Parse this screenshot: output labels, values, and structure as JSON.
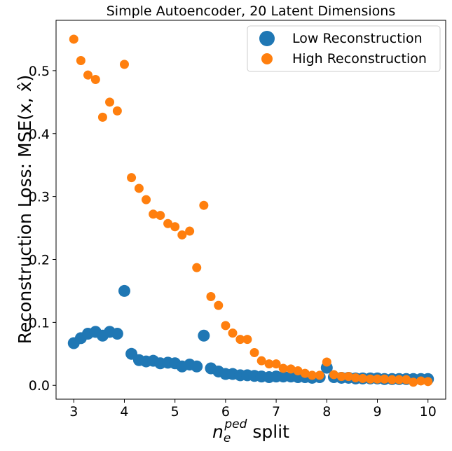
{
  "chart_data": {
    "type": "scatter",
    "title": "Simple Autoencoder, 20 Latent Dimensions",
    "xlabel_main": "n",
    "xlabel_sub": "e",
    "xlabel_sup": "ped",
    "xlabel_rest": " split",
    "ylabel": "Reconstruction Loss: MSE(x, x̂)",
    "xlim": [
      2.65,
      10.35
    ],
    "ylim": [
      -0.022,
      0.58
    ],
    "xticks": [
      "3",
      "4",
      "5",
      "6",
      "7",
      "8",
      "9",
      "10"
    ],
    "yticks": [
      "0.0",
      "0.1",
      "0.2",
      "0.3",
      "0.4",
      "0.5"
    ],
    "legend_position": "upper-right",
    "series": [
      {
        "name": "Low Reconstruction",
        "color": "#1f77b4",
        "marker_scale": "large",
        "x": [
          3.0,
          3.14,
          3.28,
          3.43,
          3.57,
          3.71,
          3.86,
          4.0,
          4.14,
          4.29,
          4.43,
          4.57,
          4.71,
          4.86,
          5.0,
          5.14,
          5.29,
          5.43,
          5.57,
          5.71,
          5.86,
          6.0,
          6.14,
          6.29,
          6.43,
          6.57,
          6.71,
          6.86,
          7.0,
          7.14,
          7.29,
          7.43,
          7.57,
          7.71,
          7.86,
          8.0,
          8.14,
          8.29,
          8.43,
          8.57,
          8.71,
          8.86,
          9.0,
          9.14,
          9.29,
          9.43,
          9.57,
          9.71,
          9.86,
          10.0
        ],
        "y": [
          0.067,
          0.075,
          0.082,
          0.085,
          0.079,
          0.085,
          0.082,
          0.15,
          0.05,
          0.04,
          0.038,
          0.039,
          0.035,
          0.036,
          0.035,
          0.03,
          0.033,
          0.03,
          0.079,
          0.027,
          0.022,
          0.018,
          0.018,
          0.016,
          0.016,
          0.015,
          0.014,
          0.013,
          0.014,
          0.014,
          0.014,
          0.013,
          0.013,
          0.012,
          0.013,
          0.028,
          0.013,
          0.012,
          0.012,
          0.011,
          0.011,
          0.011,
          0.011,
          0.01,
          0.01,
          0.01,
          0.01,
          0.01,
          0.01,
          0.01
        ]
      },
      {
        "name": "High Reconstruction",
        "color": "#ff7f0e",
        "marker_scale": "small",
        "x": [
          3.0,
          3.14,
          3.28,
          3.43,
          3.57,
          3.71,
          3.86,
          4.0,
          4.14,
          4.29,
          4.43,
          4.57,
          4.71,
          4.86,
          5.0,
          5.14,
          5.29,
          5.43,
          5.57,
          5.71,
          5.86,
          6.0,
          6.14,
          6.29,
          6.43,
          6.57,
          6.71,
          6.86,
          7.0,
          7.14,
          7.29,
          7.43,
          7.57,
          7.71,
          7.86,
          8.0,
          8.14,
          8.29,
          8.43,
          8.57,
          8.71,
          8.86,
          9.0,
          9.14,
          9.29,
          9.43,
          9.57,
          9.71,
          9.86,
          10.0
        ],
        "y": [
          0.55,
          0.516,
          0.493,
          0.486,
          0.426,
          0.45,
          0.436,
          0.51,
          0.33,
          0.313,
          0.295,
          0.272,
          0.27,
          0.257,
          0.252,
          0.239,
          0.245,
          0.187,
          0.286,
          0.141,
          0.127,
          0.095,
          0.083,
          0.073,
          0.073,
          0.052,
          0.039,
          0.034,
          0.034,
          0.027,
          0.026,
          0.023,
          0.019,
          0.016,
          0.016,
          0.037,
          0.017,
          0.014,
          0.014,
          0.012,
          0.011,
          0.01,
          0.01,
          0.01,
          0.009,
          0.009,
          0.009,
          0.005,
          0.007,
          0.006
        ]
      }
    ]
  }
}
